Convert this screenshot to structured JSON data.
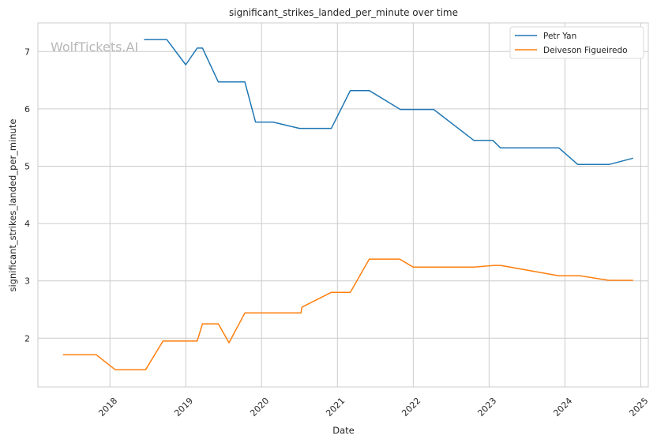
{
  "chart_data": {
    "type": "line",
    "title": "significant_strikes_landed_per_minute over time",
    "xlabel": "Date",
    "ylabel": "significant_strikes_landed_per_minute",
    "watermark": "WolfTickets.AI",
    "xlim": [
      2017.05,
      2025.1
    ],
    "ylim": [
      1.15,
      7.5
    ],
    "x_ticks": [
      2018,
      2019,
      2020,
      2021,
      2022,
      2023,
      2024,
      2025
    ],
    "x_tick_labels": [
      "2018",
      "2019",
      "2020",
      "2021",
      "2022",
      "2023",
      "2024",
      "2025"
    ],
    "y_ticks": [
      2,
      3,
      4,
      5,
      6,
      7
    ],
    "y_tick_labels": [
      "2",
      "3",
      "4",
      "5",
      "6",
      "7"
    ],
    "grid": true,
    "legend_position": "top-right",
    "series": [
      {
        "name": "Petr Yan",
        "color": "#1f77b4",
        "points": [
          [
            2018.45,
            7.21
          ],
          [
            2018.75,
            7.21
          ],
          [
            2019.0,
            6.77
          ],
          [
            2019.15,
            7.06
          ],
          [
            2019.22,
            7.06
          ],
          [
            2019.43,
            6.47
          ],
          [
            2019.78,
            6.47
          ],
          [
            2019.92,
            5.77
          ],
          [
            2020.15,
            5.77
          ],
          [
            2020.5,
            5.66
          ],
          [
            2020.92,
            5.66
          ],
          [
            2021.17,
            6.32
          ],
          [
            2021.42,
            6.32
          ],
          [
            2021.83,
            5.99
          ],
          [
            2022.0,
            5.99
          ],
          [
            2022.27,
            5.99
          ],
          [
            2022.8,
            5.45
          ],
          [
            2023.05,
            5.45
          ],
          [
            2023.15,
            5.32
          ],
          [
            2023.92,
            5.32
          ],
          [
            2024.17,
            5.03
          ],
          [
            2024.58,
            5.03
          ],
          [
            2024.9,
            5.14
          ]
        ]
      },
      {
        "name": "Deiveson Figueiredo",
        "color": "#ff7f0e",
        "points": [
          [
            2017.38,
            1.71
          ],
          [
            2017.82,
            1.71
          ],
          [
            2018.07,
            1.45
          ],
          [
            2018.47,
            1.45
          ],
          [
            2018.7,
            1.95
          ],
          [
            2019.15,
            1.95
          ],
          [
            2019.22,
            2.25
          ],
          [
            2019.43,
            2.25
          ],
          [
            2019.57,
            1.92
          ],
          [
            2019.78,
            2.44
          ],
          [
            2020.07,
            2.44
          ],
          [
            2020.52,
            2.44
          ],
          [
            2020.53,
            2.54
          ],
          [
            2020.92,
            2.8
          ],
          [
            2021.17,
            2.8
          ],
          [
            2021.42,
            3.38
          ],
          [
            2021.82,
            3.38
          ],
          [
            2022.0,
            3.24
          ],
          [
            2022.8,
            3.24
          ],
          [
            2023.07,
            3.27
          ],
          [
            2023.15,
            3.27
          ],
          [
            2023.92,
            3.09
          ],
          [
            2024.2,
            3.09
          ],
          [
            2024.58,
            3.01
          ],
          [
            2024.9,
            3.01
          ]
        ]
      }
    ]
  }
}
